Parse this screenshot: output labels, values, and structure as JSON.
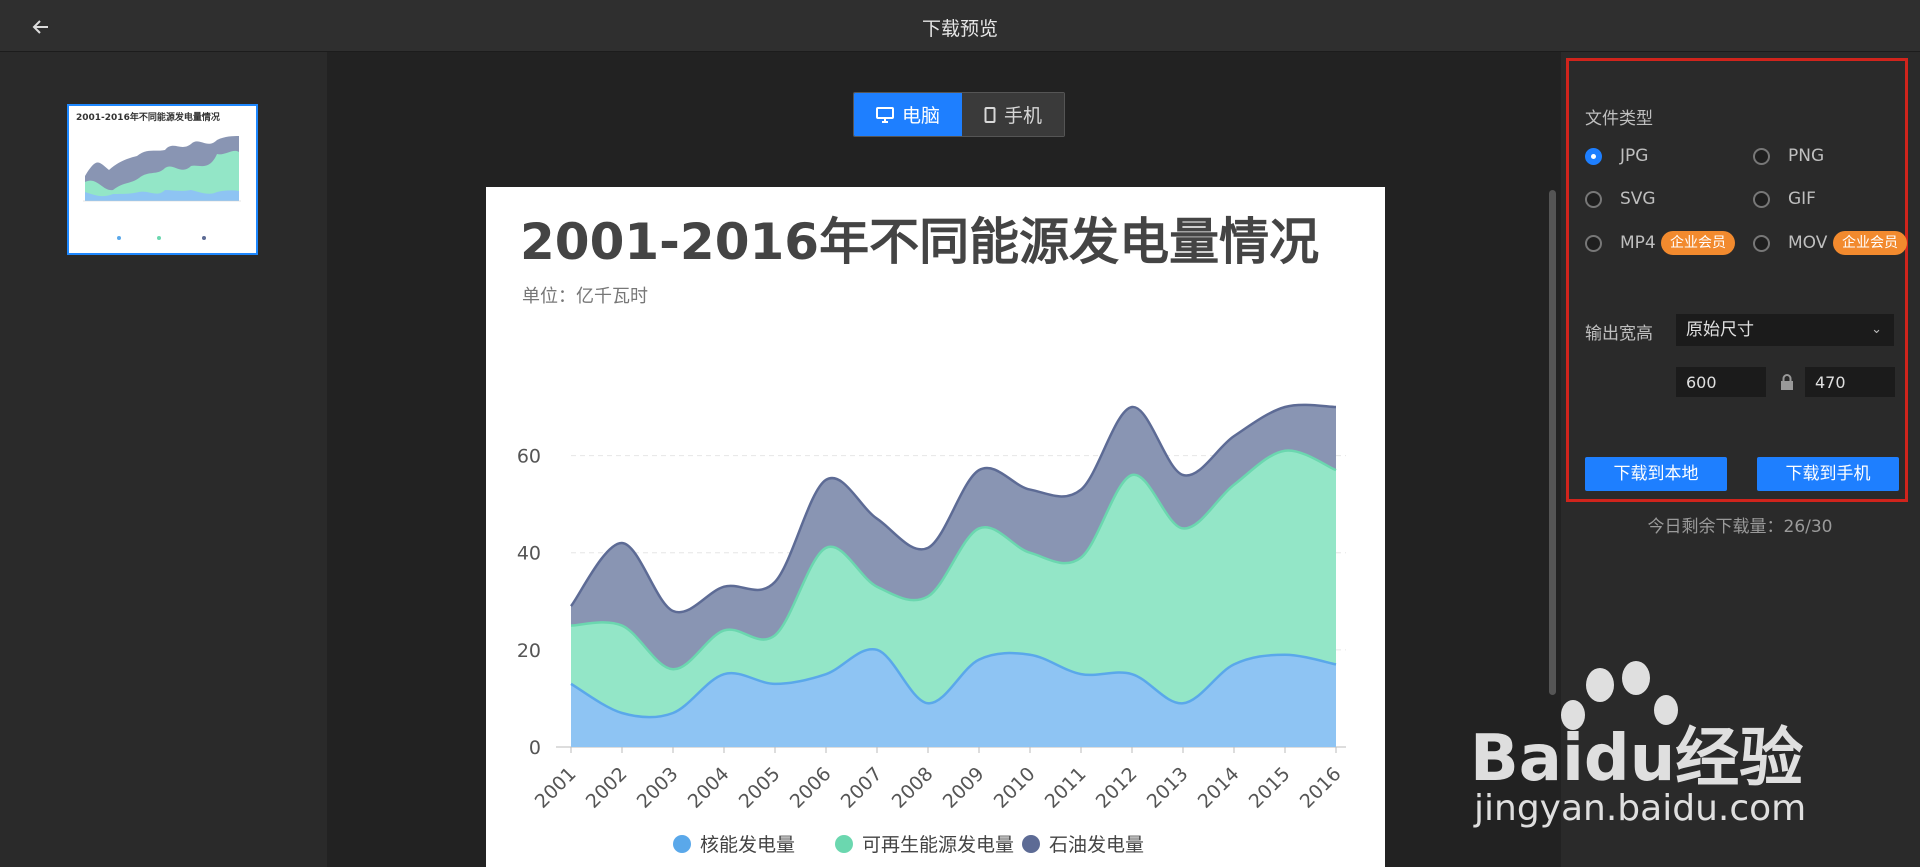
{
  "header": {
    "title": "下载预览"
  },
  "view_toggle": {
    "desktop": "电脑",
    "mobile": "手机"
  },
  "chart_data": {
    "type": "area",
    "title": "2001-2016年不同能源发电量情况",
    "subtitle": "单位：亿千瓦时",
    "x": [
      "2001",
      "2002",
      "2003",
      "2004",
      "2005",
      "2006",
      "2007",
      "2008",
      "2009",
      "2010",
      "2011",
      "2012",
      "2013",
      "2014",
      "2015",
      "2016"
    ],
    "ylim": [
      0,
      70
    ],
    "yticks": [
      0,
      20,
      40,
      60
    ],
    "stacked": true,
    "legend_position": "bottom",
    "series": [
      {
        "name": "核能发电量",
        "color": "#8ec4f3",
        "line": "#5aa8ea",
        "values": [
          13,
          7,
          7,
          15,
          13,
          15,
          20,
          9,
          18,
          19,
          15,
          15,
          9,
          17,
          19,
          17
        ]
      },
      {
        "name": "可再生能源发电量",
        "color": "#93e6c7",
        "line": "#6bd7af",
        "values": [
          12,
          18,
          9,
          9,
          10,
          26,
          13,
          22,
          27,
          21,
          24,
          41,
          36,
          37,
          42,
          40
        ]
      },
      {
        "name": "石油发电量",
        "color": "#8995b3",
        "line": "#5d6b95",
        "values": [
          4,
          17,
          12,
          9,
          11,
          14,
          14,
          10,
          12,
          13,
          14,
          14,
          11,
          10,
          9,
          13
        ]
      }
    ]
  },
  "thumbnail": {
    "title": "2001-2016年不同能源发电量情况"
  },
  "panel": {
    "file_type_label": "文件类型",
    "types": [
      {
        "label": "JPG",
        "selected": true
      },
      {
        "label": "PNG",
        "selected": false
      },
      {
        "label": "SVG",
        "selected": false
      },
      {
        "label": "GIF",
        "selected": false
      },
      {
        "label": "MP4",
        "selected": false,
        "badge": "企业会员"
      },
      {
        "label": "MOV",
        "selected": false,
        "badge": "企业会员"
      }
    ],
    "size_label": "输出宽高",
    "size_select": "原始尺寸",
    "width": "600",
    "height": "470",
    "download_local": "下载到本地",
    "download_phone": "下载到手机",
    "remaining": "今日剩余下载量：26/30"
  },
  "watermark": {
    "text_top": "Baidu经验",
    "text_bottom": "jingyan.baidu.com"
  },
  "colors": {
    "accent": "#1e7fff",
    "badge": "#f28a2e",
    "highlight": "#d0241c"
  }
}
